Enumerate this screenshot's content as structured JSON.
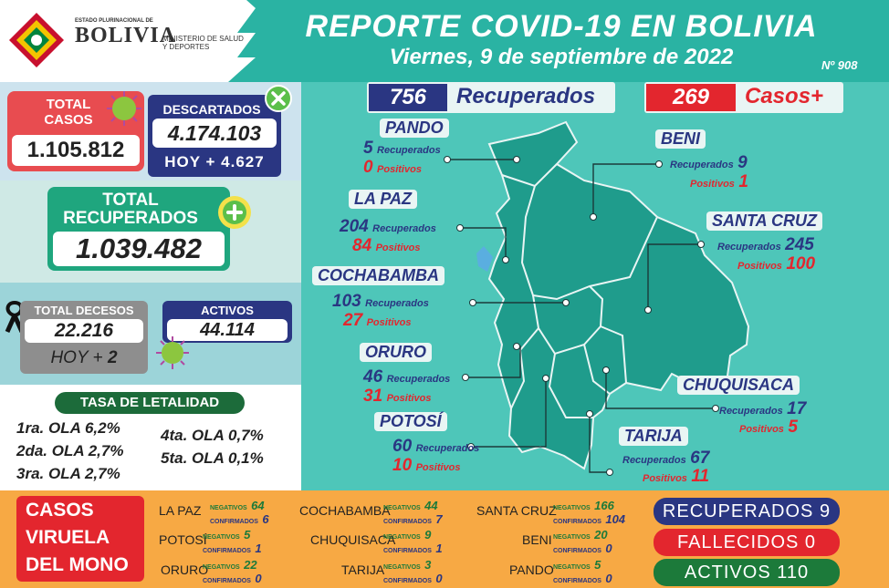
{
  "header": {
    "logo_small": "ESTADO PLURINACIONAL DE",
    "logo_name": "BOLIVIA",
    "ministry": "MINISTERIO DE SALUD Y DEPORTES",
    "title": "REPORTE COVID-19 EN BOLIVIA",
    "date": "Viernes, 9 de septiembre de 2022",
    "report_no": "Nº 908"
  },
  "summary": {
    "total_casos_label": "TOTAL CASOS",
    "total_casos": "1.105.812",
    "descartados_label": "DESCARTADOS",
    "descartados": "4.174.103",
    "descartados_hoy": "HOY + 4.627",
    "total_recuperados_label": "TOTAL RECUPERADOS",
    "total_recuperados": "1.039.482",
    "total_decesos_label": "TOTAL DECESOS",
    "total_decesos": "22.216",
    "decesos_hoy_label": "HOY +",
    "decesos_hoy": "2",
    "activos_label": "ACTIVOS",
    "activos": "44.114"
  },
  "letalidad": {
    "title": "TASA DE LETALIDAD",
    "waves": [
      "1ra. OLA 6,2%",
      "2da. OLA 2,7%",
      "3ra. OLA 2,7%",
      "4ta. OLA 0,7%",
      "5ta. OLA 0,1%"
    ]
  },
  "daily": {
    "recuperados": "756",
    "recuperados_label": "Recuperados",
    "casos": "269",
    "casos_label": "Casos+"
  },
  "departments": {
    "rec_label": "Recuperados",
    "pos_label": "Positivos",
    "pando": {
      "name": "PANDO",
      "rec": "5",
      "pos": "0"
    },
    "lapaz": {
      "name": "LA PAZ",
      "rec": "204",
      "pos": "84"
    },
    "cochabamba": {
      "name": "COCHABAMBA",
      "rec": "103",
      "pos": "27"
    },
    "oruro": {
      "name": "ORURO",
      "rec": "46",
      "pos": "31"
    },
    "potosi": {
      "name": "POTOSÍ",
      "rec": "60",
      "pos": "10"
    },
    "beni": {
      "name": "BENI",
      "rec": "9",
      "pos": "1"
    },
    "santacruz": {
      "name": "SANTA CRUZ",
      "rec": "245",
      "pos": "100"
    },
    "chuquisaca": {
      "name": "CHUQUISACA",
      "rec": "17",
      "pos": "5"
    },
    "tarija": {
      "name": "TARIJA",
      "rec": "67",
      "pos": "11"
    }
  },
  "viruela": {
    "title": [
      "CASOS",
      "VIRUELA",
      "DEL MONO"
    ],
    "neg_label": "NEGATIVOS",
    "conf_label": "CONFIRMADOS",
    "rows": [
      [
        {
          "name": "LA PAZ",
          "neg": "64",
          "conf": "6"
        },
        {
          "name": "COCHABAMBA",
          "neg": "44",
          "conf": "7"
        },
        {
          "name": "SANTA CRUZ",
          "neg": "166",
          "conf": "104"
        }
      ],
      [
        {
          "name": "POTOSÍ",
          "neg": "5",
          "conf": "1"
        },
        {
          "name": "CHUQUISACA",
          "neg": "9",
          "conf": "1"
        },
        {
          "name": "BENI",
          "neg": "20",
          "conf": "0"
        }
      ],
      [
        {
          "name": "ORURO",
          "neg": "22",
          "conf": "0"
        },
        {
          "name": "TARIJA",
          "neg": "3",
          "conf": "0"
        },
        {
          "name": "PANDO",
          "neg": "5",
          "conf": "0"
        }
      ]
    ],
    "recuperados": "RECUPERADOS  9",
    "fallecidos": "FALLECIDOS  0",
    "activos": "ACTIVOS  110"
  },
  "colors": {
    "teal": "#2ab3a3",
    "map": "#1f9c8c",
    "navy": "#2a3682",
    "red": "#e3262e",
    "green": "#1c7a3a",
    "orange": "#f7a944"
  }
}
